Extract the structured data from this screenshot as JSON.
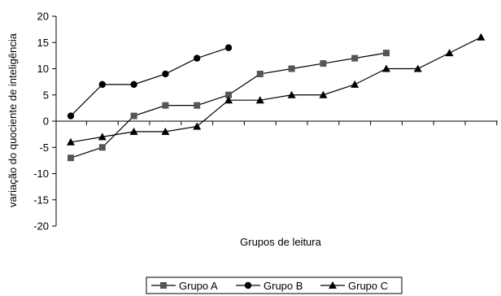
{
  "chart_data": {
    "type": "line",
    "title": "",
    "xlabel": "Grupos de leitura",
    "ylabel": "variação do quociente de inteligência",
    "ylim": [
      -20,
      20
    ],
    "yticks": [
      20,
      15,
      10,
      5,
      0,
      -5,
      -10,
      -15,
      -20
    ],
    "x_count": 15,
    "grid": false,
    "legend_position": "bottom-center",
    "series": [
      {
        "name": "Grupo A",
        "marker": "square",
        "color": "#555555",
        "values": [
          -7,
          -5,
          1,
          3,
          3,
          5,
          9,
          10,
          11,
          12,
          13
        ]
      },
      {
        "name": "Grupo B",
        "marker": "circle",
        "color": "#000000",
        "values": [
          1,
          7,
          7,
          9,
          12,
          14
        ]
      },
      {
        "name": "Grupo C",
        "marker": "triangle",
        "color": "#000000",
        "values": [
          -4,
          -3,
          -2,
          -2,
          -1,
          4,
          4,
          5,
          5,
          7,
          10,
          10,
          13,
          16
        ]
      }
    ]
  }
}
